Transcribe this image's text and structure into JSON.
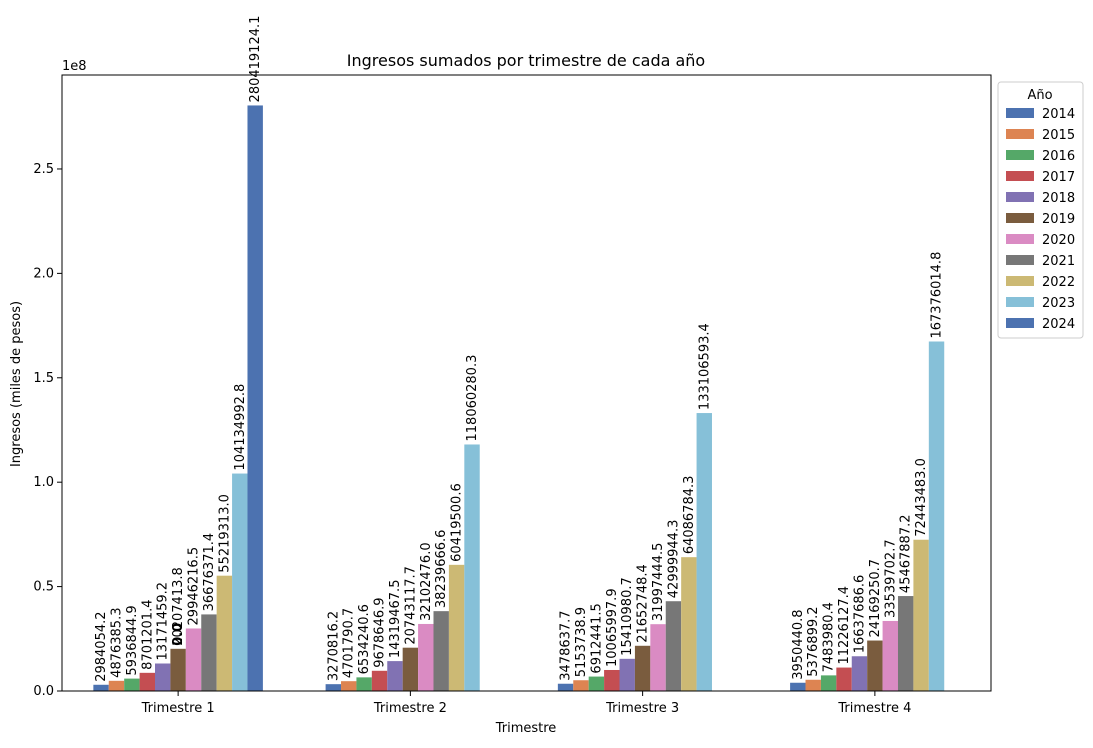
{
  "chart_data": {
    "type": "bar",
    "title": "Ingresos sumados por trimestre de cada año",
    "xlabel": "Trimestre",
    "ylabel": "Ingresos (miles de pesos)",
    "y_offset_label": "1e8",
    "ylim": [
      0,
      295000000
    ],
    "yticks": [
      0,
      50000000,
      100000000,
      150000000,
      200000000,
      250000000
    ],
    "ytick_labels": [
      "0.0",
      "0.5",
      "1.0",
      "1.5",
      "2.0",
      "2.5"
    ],
    "categories": [
      "Trimestre 1",
      "Trimestre 2",
      "Trimestre 3",
      "Trimestre 4"
    ],
    "grid": false,
    "legend": {
      "title": "Año",
      "placement": "outside-right-top"
    },
    "series": [
      {
        "name": "2014",
        "color": "#4c72b0",
        "values": [
          2984054.2,
          3270816.2,
          3478637.7,
          3950440.8
        ],
        "labels": [
          "2984054.2",
          "3270816.2",
          "3478637.7",
          "3950440.8"
        ]
      },
      {
        "name": "2015",
        "color": "#dd8452",
        "values": [
          4876385.3,
          4701790.7,
          5153738.9,
          5376899.2
        ],
        "labels": [
          "4876385.3",
          "4701790.7",
          "5153738.9",
          "5376899.2"
        ]
      },
      {
        "name": "2016",
        "color": "#55a868",
        "values": [
          5936844.9,
          6534240.6,
          6912441.5,
          7483980.4
        ],
        "labels": [
          "5936844.9",
          "6534240.6",
          "6912441.5",
          "7483980.4"
        ]
      },
      {
        "name": "2017",
        "color": "#c44e52",
        "values": [
          8701201.4,
          9678646.9,
          10065997.9,
          11226127.4
        ],
        "labels": [
          "8701201.4",
          "9678646.9",
          "10065997.9",
          "11226127.4"
        ]
      },
      {
        "name": "2018",
        "color": "#8172b3",
        "values": [
          13171459.2,
          14319467.5,
          15410980.7,
          16637686.6
        ],
        "labels": [
          "13171459.2",
          "14319467.5",
          "15410980.7",
          "16637686.6"
        ]
      },
      {
        "name": "2019",
        "color": "#7a5c3e",
        "values": [
          20207413.8,
          20743117.7,
          21652748.4,
          24169250.7
        ],
        "labels": [
          "20207413.8",
          "20743117.7",
          "21652748.4",
          "24169250.7"
        ]
      },
      {
        "name": "2020",
        "color": "#da8bc3",
        "values": [
          29946216.5,
          32102476.0,
          31997444.5,
          33539702.7
        ],
        "labels": [
          "29946216.5",
          "32102476.0",
          "31997444.5",
          "33539702.7"
        ]
      },
      {
        "name": "2021",
        "color": "#777777",
        "values": [
          36676371.4,
          38239666.6,
          42999944.3,
          45467887.2
        ],
        "labels": [
          "36676371.4",
          "38239666.6",
          "42999944.3",
          "45467887.2"
        ]
      },
      {
        "name": "2022",
        "color": "#ccb974",
        "values": [
          55219313.0,
          60419500.6,
          64086784.3,
          72443483.0
        ],
        "labels": [
          "55219313.0",
          "60419500.6",
          "64086784.3",
          "72443483.0"
        ]
      },
      {
        "name": "2023",
        "color": "#86c0d8",
        "values": [
          104134992.8,
          118060280.3,
          133106593.4,
          167376014.8
        ],
        "labels": [
          "104134992.8",
          "118060280.3",
          "133106593.4",
          "167376014.8"
        ]
      },
      {
        "name": "2024",
        "color": "#4c72b0",
        "values": [
          280419124.1,
          0,
          0,
          0
        ],
        "labels": [
          "280419124.1",
          "",
          "",
          ""
        ]
      }
    ],
    "annotations": [
      {
        "text": "0.0",
        "note": "zero-value labels for 2024 overlapping near Trimestre 1"
      }
    ]
  }
}
